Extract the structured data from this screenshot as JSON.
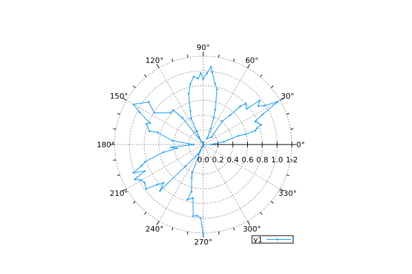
{
  "chart_data": {
    "type": "line",
    "coordinate_system": "polar",
    "title": "",
    "rlim": [
      0,
      1.2
    ],
    "r_tick_labels": [
      "0.0",
      "0.2",
      "0.4",
      "0.6",
      "0.8",
      "1.0",
      "1.2"
    ],
    "theta_tick_labels": [
      "0°",
      "30°",
      "60°",
      "90°",
      "120°",
      "150°",
      "180°",
      "210°",
      "240°",
      "270°",
      "300°",
      "330°"
    ],
    "grid": true,
    "legend_position": "bottom-right",
    "series": [
      {
        "name": "y1",
        "color": "#0a9aff",
        "marker": "plus",
        "theta_deg": [
          0,
          0,
          7.6,
          14,
          13.7,
          15,
          17,
          19,
          24,
          27,
          30,
          32.5,
          35,
          38,
          39.5,
          44,
          46,
          47.6,
          51,
          42,
          57,
          65,
          69,
          71,
          76,
          79,
          83,
          84.3,
          87,
          90,
          92,
          94.6,
          98,
          102,
          106,
          111,
          115,
          116,
          119,
          120,
          128,
          131,
          136,
          147,
          142,
          150,
          153,
          158,
          160,
          166,
          165,
          173,
          180,
          185,
          188,
          191,
          196.5,
          199,
          202,
          204.5,
          207,
          210,
          213,
          218,
          221,
          224,
          227,
          230.6,
          241,
          245,
          248.5,
          251,
          256,
          254,
          259,
          262,
          265,
          268,
          270
        ],
        "r": [
          0,
          0.1,
          0.28,
          0.49,
          0.59,
          0.73,
          0.76,
          0.83,
          0.77,
          0.9,
          1.17,
          0.98,
          0.91,
          0.97,
          0.76,
          0.8,
          0.72,
          0.54,
          0.41,
          0.15,
          0.1,
          0.24,
          0.39,
          0.5,
          0.77,
          0.84,
          0.99,
          1.06,
          0.97,
          0.89,
          0.97,
          0.9,
          0.93,
          0.84,
          0.72,
          0.49,
          0.39,
          0.2,
          0.12,
          0.04,
          0.46,
          0.62,
          0.62,
          0.79,
          0.94,
          1.09,
          0.97,
          0.78,
          0.82,
          0.75,
          0.64,
          0.42,
          0.13,
          0.44,
          0.36,
          0.55,
          0.82,
          0.88,
          1.02,
          0.87,
          1.04,
          0.97,
          0.95,
          0.98,
          0.83,
          0.75,
          0.86,
          0.38,
          0.15,
          0.04,
          0.41,
          0.48,
          0.66,
          0.78,
          0.74,
          0.98,
          0.97,
          1.0,
          1.22
        ]
      }
    ]
  }
}
